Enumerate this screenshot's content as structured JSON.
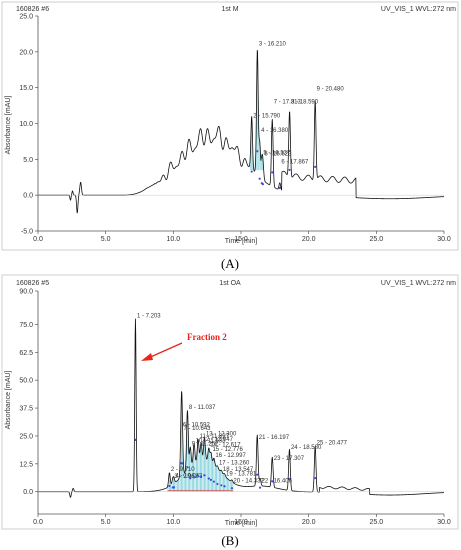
{
  "colors": {
    "trace": "#111111",
    "axis": "#555555",
    "peak_marker": "#3f4bd8",
    "fraction_fill": "#8fdde6",
    "fraction_line": "#3ab8c9",
    "annotation": "#e8241b",
    "baseline_marks": "#d23c3c"
  },
  "chart_data": [
    {
      "type": "line",
      "panel": "(A)",
      "header_left": "160826 #6",
      "header_center": "1st M",
      "header_right": "UV_VIS_1 WVL:272 nm",
      "xlabel": "Time [min]",
      "ylabel": "Absorbance [mAU]",
      "xlim": [
        0.0,
        30.0
      ],
      "ylim": [
        -5.0,
        25.0
      ],
      "xticks": [
        0.0,
        5.0,
        10.0,
        15.0,
        20.0,
        25.0,
        30.0
      ],
      "xtick_labels": [
        "0.0",
        "5.0",
        "10.0",
        "15.0",
        "20.0",
        "25.0",
        "30.0"
      ],
      "yticks": [
        -5.0,
        0.0,
        5.0,
        10.0,
        15.0,
        20.0,
        25.0
      ],
      "ytick_labels": [
        "-5.0",
        "0.0",
        "5.0",
        "10.0",
        "15.0",
        "20.0",
        "25.0"
      ],
      "peaks": [
        {
          "label": "2 - 15.790",
          "x": 15.79,
          "y": 10.6
        },
        {
          "label": "3 - 16.210",
          "x": 16.21,
          "y": 20.7
        },
        {
          "label": "4 - 16.380",
          "x": 16.38,
          "y": 8.6
        },
        {
          "label": "5 - 16.537",
          "x": 16.54,
          "y": 5.5
        },
        {
          "label": "6 - 16.623",
          "x": 16.62,
          "y": 5.3
        },
        {
          "label": "6 - 17.867",
          "x": 17.87,
          "y": 4.2
        },
        {
          "label": "7 - 17.313",
          "x": 17.31,
          "y": 12.6
        },
        {
          "label": "8 - 18.590",
          "x": 18.59,
          "y": 12.6
        },
        {
          "label": "9 - 20.480",
          "x": 20.48,
          "y": 14.4
        }
      ]
    },
    {
      "type": "line",
      "panel": "(B)",
      "header_left": "160826 #5",
      "header_center": "1st OA",
      "header_right": "UV_VIS_1 WVL:272 nm",
      "xlabel": "Time [min]",
      "ylabel": "Absorbance [mAU]",
      "xlim": [
        0.0,
        30.0
      ],
      "ylim": [
        -10.0,
        90.0
      ],
      "xticks": [
        0.0,
        5.0,
        10.0,
        15.0,
        20.0,
        25.0,
        30.0
      ],
      "xtick_labels": [
        "0.0",
        "5.0",
        "10.0",
        "15.0",
        "20.0",
        "25.0",
        "30.0"
      ],
      "yticks": [
        0.0,
        12.5,
        25.0,
        37.5,
        50.0,
        62.5,
        75.0,
        90.0
      ],
      "ytick_labels": [
        "0.0",
        "12.5",
        "25.0",
        "37.5",
        "50.0",
        "62.5",
        "75.0",
        "90.0"
      ],
      "annotation": "Fraction 2",
      "peaks": [
        {
          "label": "1 - 7.203",
          "x": 7.2,
          "y": 77.5
        },
        {
          "label": "2 - 9.710",
          "x": 9.71,
          "y": 8.5
        },
        {
          "label": "3 - 9.962",
          "x": 9.96,
          "y": 5.5
        },
        {
          "label": "4 - 10.043",
          "x": 10.04,
          "y": 5.6
        },
        {
          "label": "6 - 10.592",
          "x": 10.59,
          "y": 28.5
        },
        {
          "label": "7 - 10.643",
          "x": 10.64,
          "y": 27.0
        },
        {
          "label": "8 - 11.037",
          "x": 11.04,
          "y": 36.5
        },
        {
          "label": "9 - 11.252",
          "x": 11.25,
          "y": 20.0
        },
        {
          "label": "10 - 11.533",
          "x": 11.53,
          "y": 21.5
        },
        {
          "label": "11 - 11.827",
          "x": 11.83,
          "y": 23.5
        },
        {
          "label": "12 - 12.047",
          "x": 12.05,
          "y": 22.0
        },
        {
          "label": "13 - 12.300",
          "x": 12.3,
          "y": 24.5
        },
        {
          "label": "14 - 12.617",
          "x": 12.62,
          "y": 19.5
        },
        {
          "label": "15 - 12.776",
          "x": 12.78,
          "y": 17.5
        },
        {
          "label": "16 - 12.997",
          "x": 13.0,
          "y": 15.0
        },
        {
          "label": "17 - 13.260",
          "x": 13.26,
          "y": 11.5
        },
        {
          "label": "18 - 13.547",
          "x": 13.55,
          "y": 8.5
        },
        {
          "label": "19 - 13.781",
          "x": 13.78,
          "y": 6.5
        },
        {
          "label": "20 - 14.332",
          "x": 14.33,
          "y": 3.5
        },
        {
          "label": "21 - 16.197",
          "x": 16.2,
          "y": 23.0
        },
        {
          "label": "22 - 16.406",
          "x": 16.41,
          "y": 3.5
        },
        {
          "label": "23 - 17.307",
          "x": 17.31,
          "y": 13.5
        },
        {
          "label": "24 - 18.580",
          "x": 18.58,
          "y": 18.5
        },
        {
          "label": "25 - 20.477",
          "x": 20.48,
          "y": 20.5
        }
      ]
    }
  ]
}
